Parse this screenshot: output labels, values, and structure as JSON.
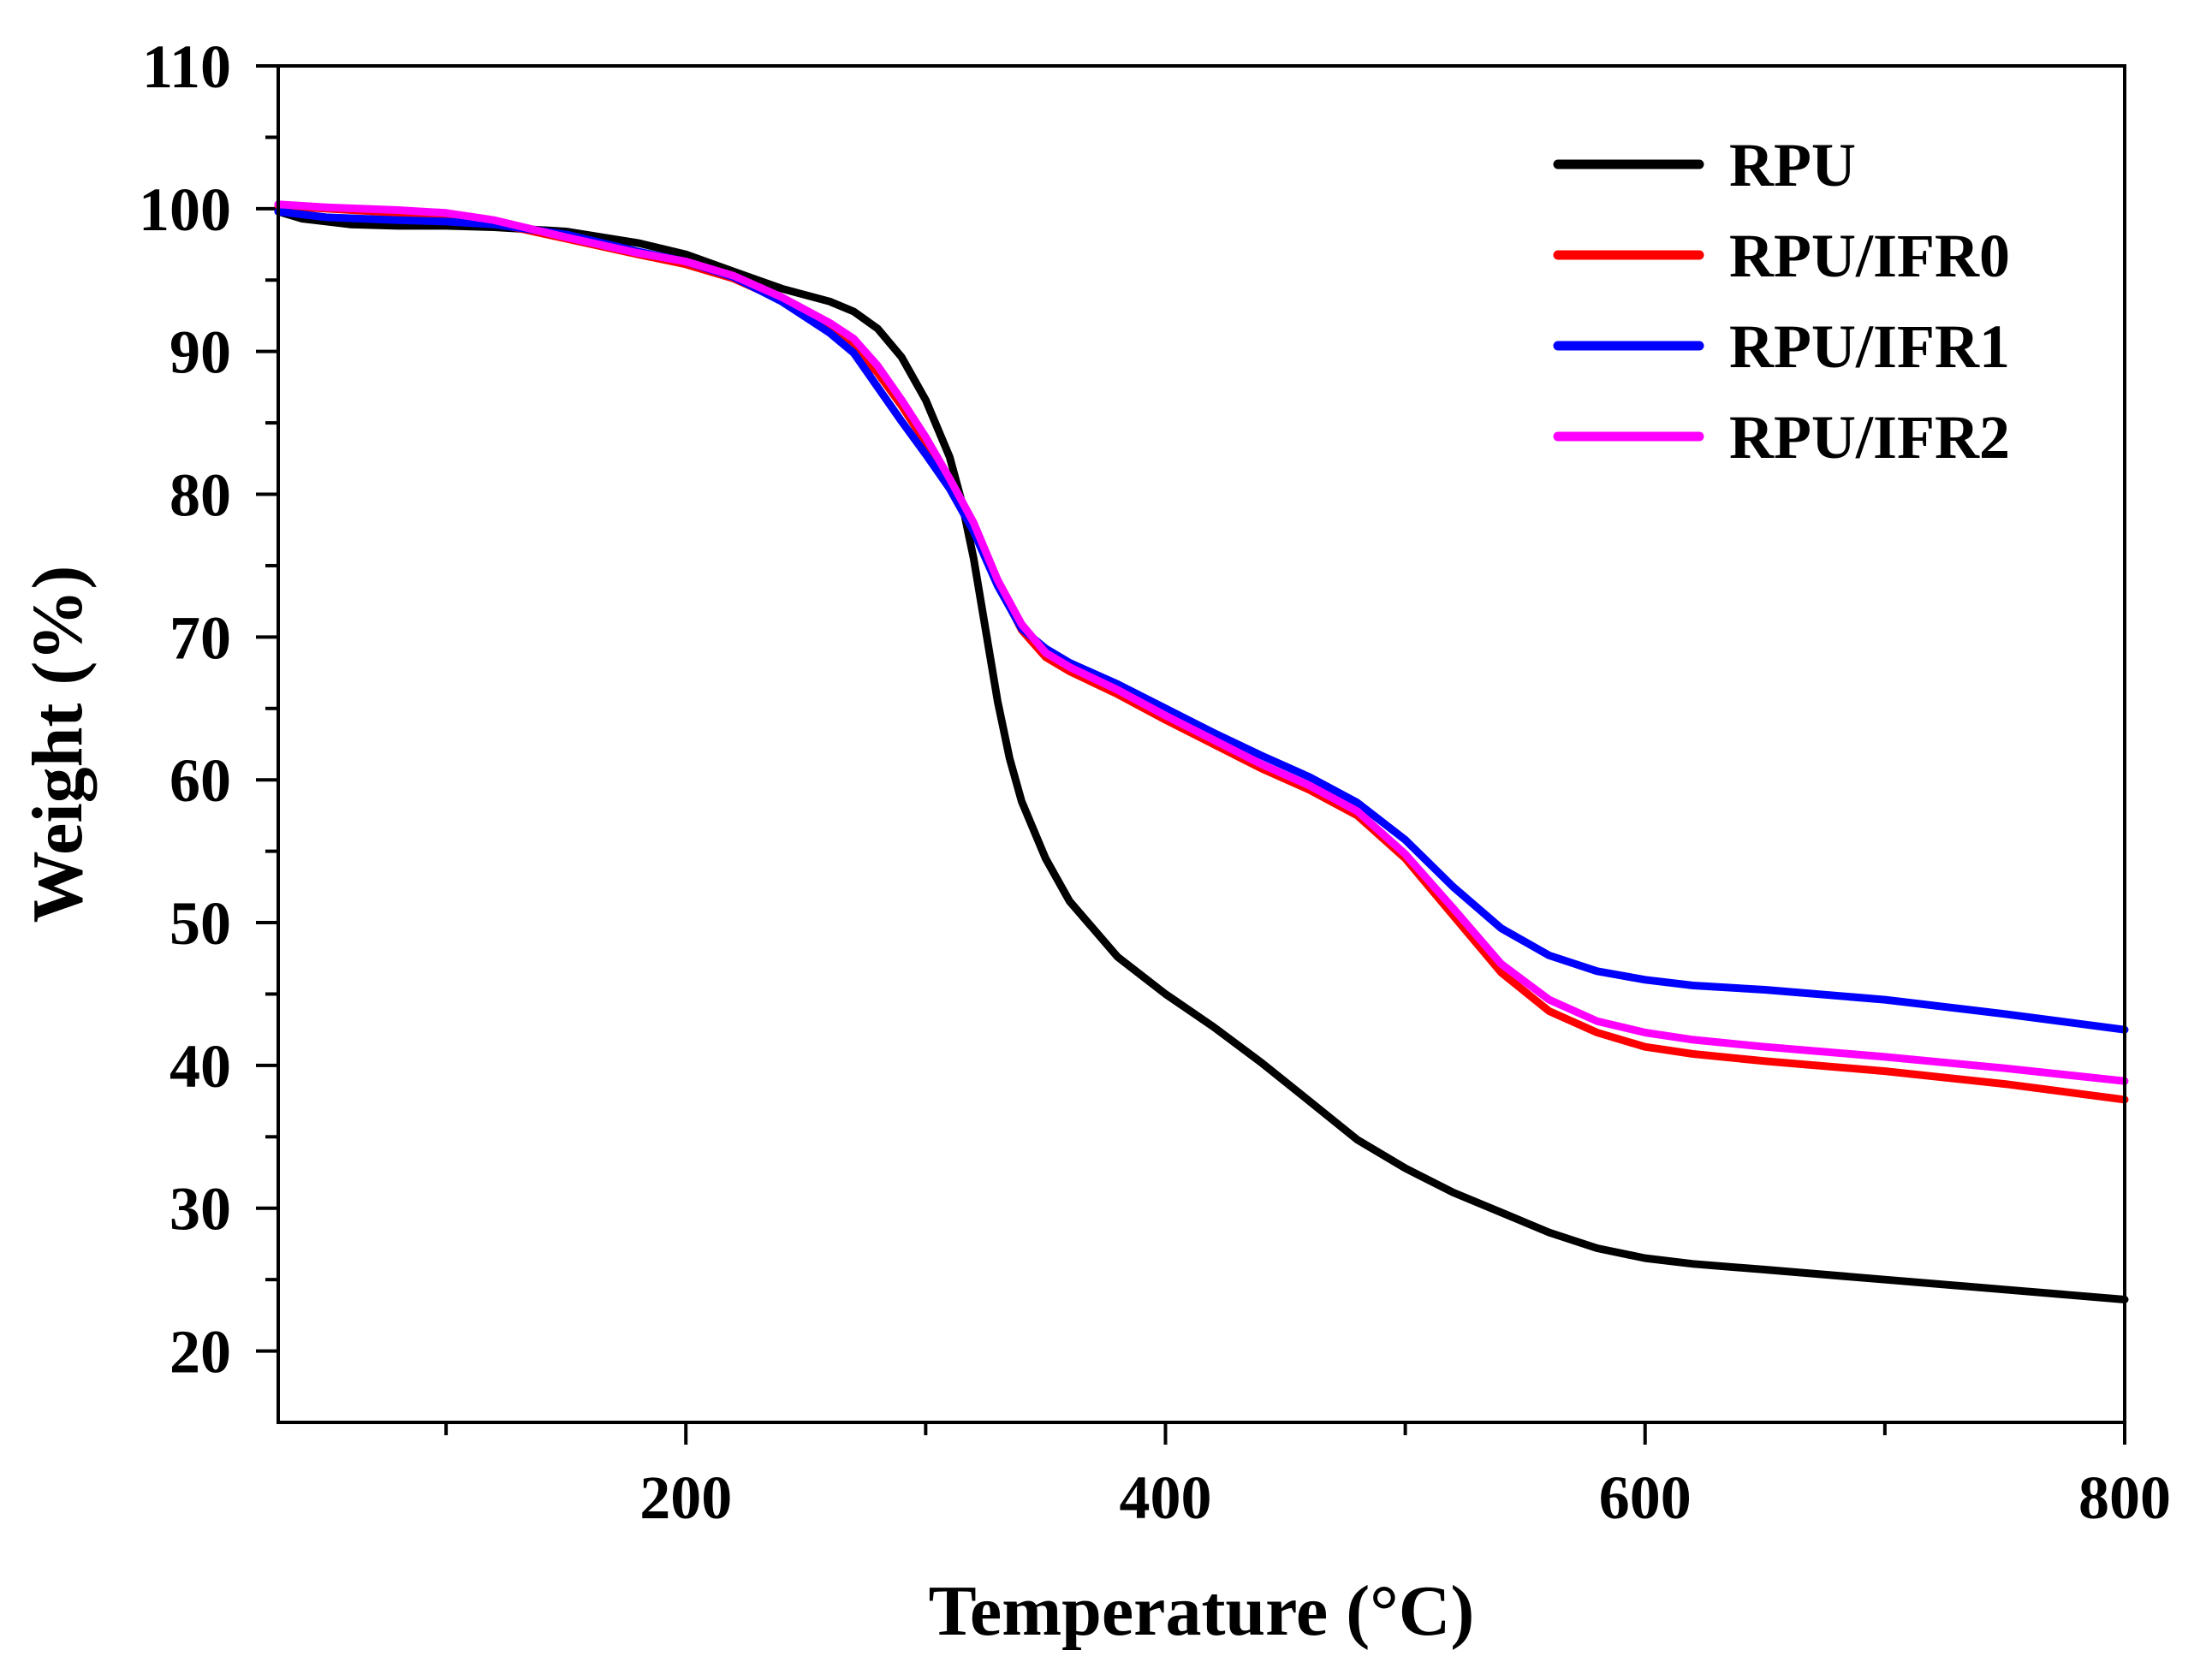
{
  "chart_data": {
    "type": "line",
    "title": "",
    "xlabel": "Temperature (°C)",
    "ylabel": "Weight (%)",
    "xlim": [
      30,
      800
    ],
    "ylim": [
      15,
      110
    ],
    "x_major_ticks": [
      200,
      400,
      600,
      800
    ],
    "x_minor_ticks": [
      100,
      300,
      500,
      700
    ],
    "y_major_ticks": [
      20,
      30,
      40,
      50,
      60,
      70,
      80,
      90,
      100,
      110
    ],
    "grid": false,
    "legend_position": "top-right",
    "series": [
      {
        "name": "RPU",
        "color": "#000000",
        "points": [
          [
            30,
            99.8
          ],
          [
            40,
            99.3
          ],
          [
            60,
            98.9
          ],
          [
            80,
            98.8
          ],
          [
            100,
            98.8
          ],
          [
            120,
            98.7
          ],
          [
            150,
            98.4
          ],
          [
            180,
            97.6
          ],
          [
            200,
            96.8
          ],
          [
            220,
            95.6
          ],
          [
            240,
            94.4
          ],
          [
            260,
            93.5
          ],
          [
            270,
            92.8
          ],
          [
            280,
            91.6
          ],
          [
            290,
            89.6
          ],
          [
            300,
            86.6
          ],
          [
            310,
            82.6
          ],
          [
            315,
            79.5
          ],
          [
            320,
            75.5
          ],
          [
            325,
            70.5
          ],
          [
            330,
            65.5
          ],
          [
            335,
            61.5
          ],
          [
            340,
            58.5
          ],
          [
            350,
            54.5
          ],
          [
            360,
            51.5
          ],
          [
            380,
            47.6
          ],
          [
            400,
            45.0
          ],
          [
            420,
            42.7
          ],
          [
            440,
            40.2
          ],
          [
            460,
            37.5
          ],
          [
            480,
            34.8
          ],
          [
            500,
            32.8
          ],
          [
            520,
            31.1
          ],
          [
            540,
            29.7
          ],
          [
            560,
            28.3
          ],
          [
            580,
            27.2
          ],
          [
            600,
            26.5
          ],
          [
            620,
            26.1
          ],
          [
            650,
            25.7
          ],
          [
            700,
            25.0
          ],
          [
            750,
            24.3
          ],
          [
            800,
            23.6
          ]
        ]
      },
      {
        "name": "RPU/IFR0",
        "color": "#ff0000",
        "points": [
          [
            30,
            100.2
          ],
          [
            50,
            100.0
          ],
          [
            80,
            99.7
          ],
          [
            100,
            99.5
          ],
          [
            120,
            99.0
          ],
          [
            150,
            97.9
          ],
          [
            180,
            96.8
          ],
          [
            200,
            96.1
          ],
          [
            220,
            95.1
          ],
          [
            240,
            93.6
          ],
          [
            260,
            91.6
          ],
          [
            270,
            90.3
          ],
          [
            280,
            88.5
          ],
          [
            290,
            86.2
          ],
          [
            300,
            83.6
          ],
          [
            310,
            80.9
          ],
          [
            320,
            77.7
          ],
          [
            330,
            73.8
          ],
          [
            340,
            70.5
          ],
          [
            350,
            68.6
          ],
          [
            360,
            67.6
          ],
          [
            380,
            66.0
          ],
          [
            400,
            64.2
          ],
          [
            420,
            62.5
          ],
          [
            440,
            60.8
          ],
          [
            460,
            59.3
          ],
          [
            480,
            57.5
          ],
          [
            500,
            54.5
          ],
          [
            520,
            50.5
          ],
          [
            540,
            46.5
          ],
          [
            560,
            43.8
          ],
          [
            580,
            42.3
          ],
          [
            600,
            41.3
          ],
          [
            620,
            40.8
          ],
          [
            650,
            40.3
          ],
          [
            700,
            39.6
          ],
          [
            750,
            38.7
          ],
          [
            800,
            37.6
          ]
        ]
      },
      {
        "name": "RPU/IFR1",
        "color": "#0000ff",
        "points": [
          [
            30,
            99.8
          ],
          [
            50,
            99.4
          ],
          [
            80,
            99.2
          ],
          [
            100,
            99.1
          ],
          [
            120,
            98.9
          ],
          [
            150,
            98.2
          ],
          [
            180,
            97.0
          ],
          [
            200,
            96.3
          ],
          [
            220,
            95.2
          ],
          [
            240,
            93.5
          ],
          [
            260,
            91.3
          ],
          [
            270,
            89.9
          ],
          [
            280,
            87.5
          ],
          [
            290,
            85.1
          ],
          [
            300,
            82.8
          ],
          [
            310,
            80.4
          ],
          [
            320,
            77.4
          ],
          [
            330,
            73.6
          ],
          [
            340,
            70.6
          ],
          [
            350,
            69.2
          ],
          [
            360,
            68.2
          ],
          [
            380,
            66.7
          ],
          [
            400,
            65.0
          ],
          [
            420,
            63.3
          ],
          [
            440,
            61.7
          ],
          [
            460,
            60.2
          ],
          [
            480,
            58.4
          ],
          [
            500,
            55.8
          ],
          [
            520,
            52.5
          ],
          [
            540,
            49.6
          ],
          [
            560,
            47.7
          ],
          [
            580,
            46.6
          ],
          [
            600,
            46.0
          ],
          [
            620,
            45.6
          ],
          [
            650,
            45.3
          ],
          [
            700,
            44.6
          ],
          [
            750,
            43.6
          ],
          [
            800,
            42.5
          ]
        ]
      },
      {
        "name": "RPU/IFR2",
        "color": "#ff00ff",
        "points": [
          [
            30,
            100.3
          ],
          [
            50,
            100.1
          ],
          [
            80,
            99.9
          ],
          [
            100,
            99.7
          ],
          [
            120,
            99.2
          ],
          [
            150,
            98.0
          ],
          [
            180,
            96.9
          ],
          [
            200,
            96.3
          ],
          [
            220,
            95.3
          ],
          [
            240,
            93.8
          ],
          [
            260,
            92.0
          ],
          [
            270,
            90.9
          ],
          [
            280,
            89.0
          ],
          [
            290,
            86.6
          ],
          [
            300,
            84.0
          ],
          [
            310,
            81.1
          ],
          [
            320,
            78.0
          ],
          [
            330,
            74.0
          ],
          [
            340,
            70.9
          ],
          [
            350,
            68.9
          ],
          [
            360,
            67.9
          ],
          [
            380,
            66.3
          ],
          [
            400,
            64.5
          ],
          [
            420,
            62.8
          ],
          [
            440,
            61.1
          ],
          [
            460,
            59.6
          ],
          [
            480,
            57.8
          ],
          [
            500,
            54.8
          ],
          [
            520,
            51.0
          ],
          [
            540,
            47.1
          ],
          [
            560,
            44.6
          ],
          [
            580,
            43.1
          ],
          [
            600,
            42.3
          ],
          [
            620,
            41.8
          ],
          [
            650,
            41.3
          ],
          [
            700,
            40.6
          ],
          [
            750,
            39.8
          ],
          [
            800,
            38.9
          ]
        ]
      }
    ]
  }
}
